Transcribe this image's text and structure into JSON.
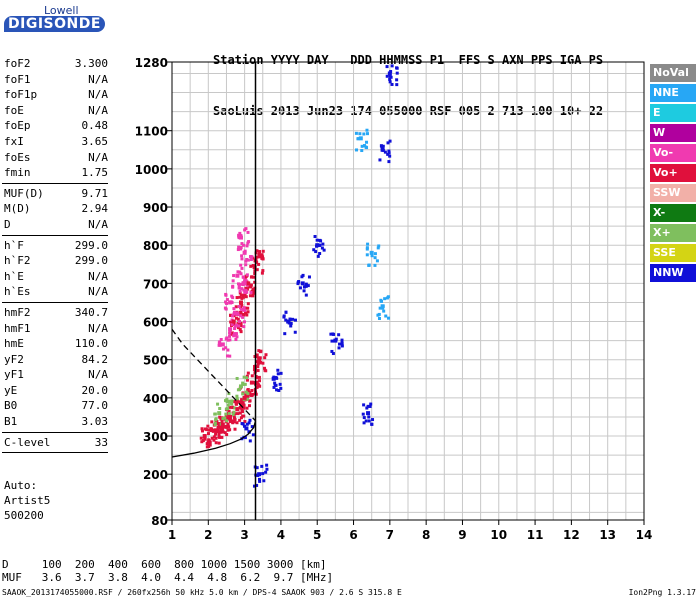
{
  "logo": {
    "top": "Lowell",
    "main": "DIGISONDE"
  },
  "header": {
    "line1": "Station YYYY DAY   DDD HHMMSS P1  FFS S AXN PPS IGA PS",
    "line2": "SaoLuis 2013 Jun23 174 055000 RSF 005 2 713 100 10+ 22"
  },
  "params": [
    {
      "group": 1,
      "key": "foF2",
      "val": "3.300"
    },
    {
      "group": 1,
      "key": "foF1",
      "val": "N/A"
    },
    {
      "group": 1,
      "key": "foF1p",
      "val": "N/A"
    },
    {
      "group": 1,
      "key": "foE",
      "val": "N/A"
    },
    {
      "group": 1,
      "key": "foEp",
      "val": "0.48"
    },
    {
      "group": 1,
      "key": "fxI",
      "val": "3.65"
    },
    {
      "group": 1,
      "key": "foEs",
      "val": "N/A"
    },
    {
      "group": 1,
      "key": "fmin",
      "val": "1.75"
    },
    {
      "group": 2,
      "key": "MUF(D)",
      "val": "9.71"
    },
    {
      "group": 2,
      "key": "M(D)",
      "val": "2.94"
    },
    {
      "group": 2,
      "key": "D",
      "val": "N/A"
    },
    {
      "group": 3,
      "key": "h`F",
      "val": "299.0"
    },
    {
      "group": 3,
      "key": "h`F2",
      "val": "299.0"
    },
    {
      "group": 3,
      "key": "h`E",
      "val": "N/A"
    },
    {
      "group": 3,
      "key": "h`Es",
      "val": "N/A"
    },
    {
      "group": 4,
      "key": "hmF2",
      "val": "340.7"
    },
    {
      "group": 4,
      "key": "hmF1",
      "val": "N/A"
    },
    {
      "group": 4,
      "key": "hmE",
      "val": "110.0"
    },
    {
      "group": 4,
      "key": "yF2",
      "val": "84.2"
    },
    {
      "group": 4,
      "key": "yF1",
      "val": "N/A"
    },
    {
      "group": 4,
      "key": "yE",
      "val": "20.0"
    },
    {
      "group": 4,
      "key": "B0",
      "val": "77.0"
    },
    {
      "group": 4,
      "key": "B1",
      "val": "3.03"
    },
    {
      "group": 5,
      "key": "C-level",
      "val": "33"
    }
  ],
  "autoscale": {
    "line1": "Auto:",
    "line2": "Artist5",
    "line3": "500200"
  },
  "legend": [
    {
      "label": "NoVal",
      "color": "#8a8a8a"
    },
    {
      "label": "NNE",
      "color": "#27a7f5"
    },
    {
      "label": "E",
      "color": "#1ecbe0"
    },
    {
      "label": "W",
      "color": "#b0009e"
    },
    {
      "label": "Vo-",
      "color": "#f03ab0"
    },
    {
      "label": "Vo+",
      "color": "#e0103c"
    },
    {
      "label": "SSW",
      "color": "#f2b0a8"
    },
    {
      "label": "X-",
      "color": "#0f7a12"
    },
    {
      "label": "X+",
      "color": "#7fbf5e"
    },
    {
      "label": "SSE",
      "color": "#d4d414"
    },
    {
      "label": "NNW",
      "color": "#1010d8"
    }
  ],
  "muf_table": {
    "d_row": "D     100  200  400  600  800 1000 1500 3000 [km]",
    "muf_row": "MUF   3.6  3.7  3.8  4.0  4.4  4.8  6.2  9.7 [MHz]"
  },
  "footer": {
    "left": "SAAOK_2013174055000.RSF / 260fx256h 50 kHz 5.0 km / DPS-4 SAAOK 903 / 2.6 S 315.8 E",
    "right": "Ion2Png 1.3.17"
  },
  "chart_data": {
    "type": "scatter",
    "title": "",
    "xlabel": "",
    "ylabel": "",
    "xlim": [
      1,
      14
    ],
    "ylim": [
      80,
      1280
    ],
    "x_ticks": [
      1,
      2,
      3,
      4,
      5,
      6,
      7,
      8,
      9,
      10,
      11,
      12,
      13,
      14
    ],
    "y_ticks": [
      80,
      200,
      300,
      400,
      500,
      600,
      700,
      800,
      900,
      1000,
      1100,
      1280
    ],
    "y_tick_labels": [
      "80",
      "200",
      "300",
      "400",
      "500",
      "600",
      "700",
      "800",
      "900",
      "1000",
      "1100",
      "1280"
    ],
    "grid": true,
    "series": [
      {
        "name": "Vo+",
        "color": "#e0103c",
        "x": [
          1.9,
          2.2,
          2.4,
          2.6,
          2.8,
          3.0,
          3.2,
          3.4,
          2.7,
          2.9,
          3.1,
          3.3
        ],
        "y": [
          300,
          315,
          330,
          350,
          370,
          400,
          440,
          500,
          600,
          650,
          700,
          760
        ]
      },
      {
        "name": "Vo-",
        "color": "#f03ab0",
        "x": [
          2.4,
          2.6,
          2.8,
          3.0,
          2.6,
          2.8,
          3.0,
          2.9
        ],
        "y": [
          540,
          580,
          620,
          700,
          650,
          720,
          780,
          820
        ]
      },
      {
        "name": "NNW",
        "color": "#1010d8",
        "x": [
          3.05,
          3.4,
          3.8,
          4.2,
          4.6,
          5.0,
          5.5,
          6.4,
          6.8,
          7.0
        ],
        "y": [
          320,
          200,
          450,
          600,
          700,
          800,
          550,
          360,
          1050,
          1250
        ]
      },
      {
        "name": "X+",
        "color": "#7fbf5e",
        "x": [
          2.3,
          2.6,
          2.9
        ],
        "y": [
          360,
          390,
          430
        ]
      },
      {
        "name": "NNE",
        "color": "#27a7f5",
        "x": [
          6.2,
          6.5,
          6.8
        ],
        "y": [
          1080,
          780,
          640
        ]
      }
    ],
    "traces": [
      {
        "name": "profile",
        "style": "solid",
        "x": [
          1.0,
          1.6,
          2.2,
          2.6,
          2.9,
          3.1,
          3.25,
          3.3
        ],
        "y": [
          245,
          255,
          268,
          280,
          292,
          305,
          322,
          340
        ]
      },
      {
        "name": "muf-curve",
        "style": "dashed",
        "x": [
          1.0,
          1.3,
          1.7,
          2.1,
          2.5,
          2.9,
          3.3
        ],
        "y": [
          580,
          540,
          500,
          460,
          420,
          380,
          340
        ]
      }
    ],
    "vline": {
      "x": 3.3
    }
  }
}
